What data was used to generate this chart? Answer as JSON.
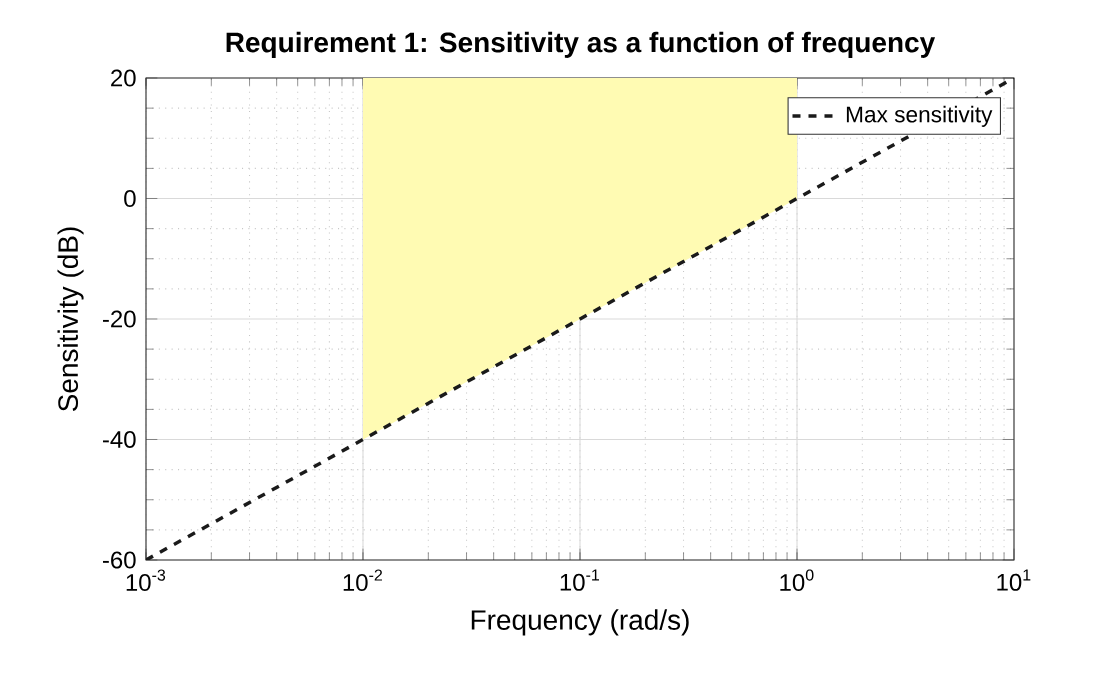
{
  "chart_data": {
    "type": "line",
    "title": "Requirement 1: Sensitivity as a function of frequency",
    "xlabel": "Frequency (rad/s)",
    "ylabel": "Sensitivity (dB)",
    "series": [
      {
        "name": "Max sensitivity",
        "color": "#1a1a1a",
        "line_style": "dashed",
        "x": [
          0.001,
          0.01,
          1,
          10
        ],
        "values": [
          -60,
          -40,
          0,
          20
        ],
        "lower": [
          null,
          -40,
          0,
          null
        ],
        "upper": [
          null,
          20,
          20,
          null
        ]
      }
    ],
    "log": "x",
    "xlim": [
      0.001,
      10
    ],
    "ylim": [
      -60,
      20
    ],
    "xticks": [
      {
        "value": 0.001,
        "label": "10$^{-3}$"
      },
      {
        "value": 0.01,
        "label": "10$^{-2}$"
      },
      {
        "value": 0.1,
        "label": "10$^{-1}$"
      },
      {
        "value": 1,
        "label": "10$^{0}$"
      },
      {
        "value": 10,
        "label": "10$^{1}$"
      }
    ],
    "yticks": [
      -60,
      -40,
      -20,
      0,
      20
    ],
    "grid": true,
    "legend": "top right"
  }
}
